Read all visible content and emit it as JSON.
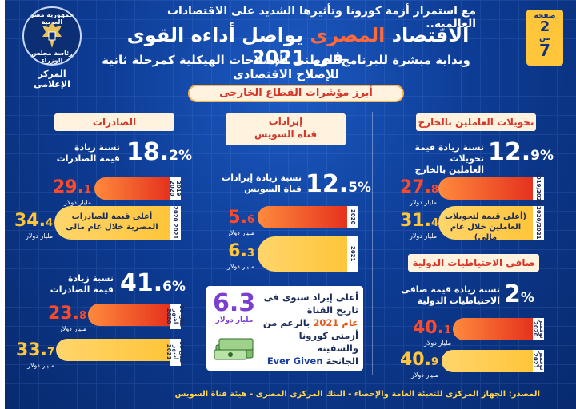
{
  "header": {
    "top_line": "مع استمرار أزمة كورونا وتأثيرها الشديد على الاقتصادات العالمية..",
    "title_a": "الاقتصاد",
    "title_hl": "المصرى",
    "title_b": "يواصل أداءه القوى فى 2021",
    "subtitle": "وبداية مبشرة للبرنامج الوطنى للإصلاحات الهيكلية كمرحلة ثانية للإصلاح الاقتصادى",
    "page_label": "صفحة",
    "page_num": "2",
    "page_of": "من",
    "page_total": "7",
    "seal_top": "جمهورية مصر العربية",
    "seal_mid": "رئاسة مجلس الوزراء",
    "seal_bottom": "المركز الإعلامى"
  },
  "banner": "أبرز مؤشرات القطاع الخارجى",
  "remittances": {
    "tag": "تحويلات العاملين بالخارج",
    "pct_int": "12.",
    "pct_dec": "9",
    "pct_sym": "%",
    "pct_label_1": "نسبة زيادة قيمة تحويلات",
    "pct_label_2": "العاملين بالخارج",
    "bar1_year": "2019/2020",
    "bar1_val_int": "27.",
    "bar1_val_dec": "8",
    "bar2_year": "2020/2021",
    "bar2_val_int": "31.",
    "bar2_val_dec": "4",
    "bar2_note_1": "(أعلى قيمة لتحويلات",
    "bar2_note_2": "العاملين خلال عام مالى)",
    "unit": "مليار دولار"
  },
  "reserves": {
    "tag": "صافى الاحتياطيات الدولية",
    "pct": "2",
    "pct_sym": "%",
    "pct_label_1": "نسبة زيادة قيمة صافى",
    "pct_label_2": "الاحتياطيات الدولية",
    "bar1_year": "نوفمبر 2020",
    "bar1_val_int": "40.",
    "bar1_val_dec": "1",
    "bar2_year": "نوفمبر 2021",
    "bar2_val_int": "40.",
    "bar2_val_dec": "9",
    "unit": "مليار دولار"
  },
  "suez": {
    "tag_1": "إيرادات",
    "tag_2": "قناة السويس",
    "pct_int": "12.",
    "pct_dec": "5",
    "pct_sym": "%",
    "pct_label_1": "نسبة زيادة إيرادات",
    "pct_label_2": "قناة السويس",
    "bar1_year": "2020",
    "bar1_val_int": "5.",
    "bar1_val_dec": "6",
    "bar2_year": "2021",
    "bar2_val_int": "6.",
    "bar2_val_dec": "3",
    "unit": "مليار دولار",
    "card_val": "6.3",
    "card_unit": "مليار دولار",
    "card_l1": "أعلى إيراد سنوى فى",
    "card_l2": "تاريخ القناة",
    "card_l3_a": "عام",
    "card_l3_b": "2021",
    "card_l3_c": "بالرغم من",
    "card_l4": "أزمتى كورونا والسفينة",
    "card_l5_a": "Ever Given",
    "card_l5_b": "الجانحة"
  },
  "exports": {
    "tag": "الصادرات",
    "pct1_int": "18.",
    "pct1_dec": "2",
    "pct_sym": "%",
    "pct1_label_1": "نسبة زيادة",
    "pct1_label_2": "قيمة الصادرات",
    "bar1_year": "2019 2020",
    "bar1_val_int": "29.",
    "bar1_val_dec": "1",
    "bar2_year": "2020 2021",
    "bar2_val_int": "34.",
    "bar2_val_dec": "4",
    "bar2_note_1": "أعلى قيمة للصادرات",
    "bar2_note_2": "المصرية خلال عام مالى",
    "pct2_int": "41.",
    "pct2_dec": "6",
    "pct2_label_1": "نسبة زيادة",
    "pct2_label_2": "قيمة الصادرات",
    "bar3_year": "خلال 10 أشهر 2020",
    "bar3_val_int": "23.",
    "bar3_val_dec": "8",
    "bar4_year": "خلال 10 أشهر 2021",
    "bar4_val_int": "33.",
    "bar4_val_dec": "7",
    "unit": "مليار دولار"
  },
  "source": "المصدر: الجهاز المركزى للتعبئة العامة والإحصاء - البنك المركزى المصرى - هيئة قناة السويس",
  "colors": {
    "bg": "#0d3c95",
    "accent": "#ffc63b",
    "red": "#e5321d",
    "tag_bg": "#fff2de"
  }
}
